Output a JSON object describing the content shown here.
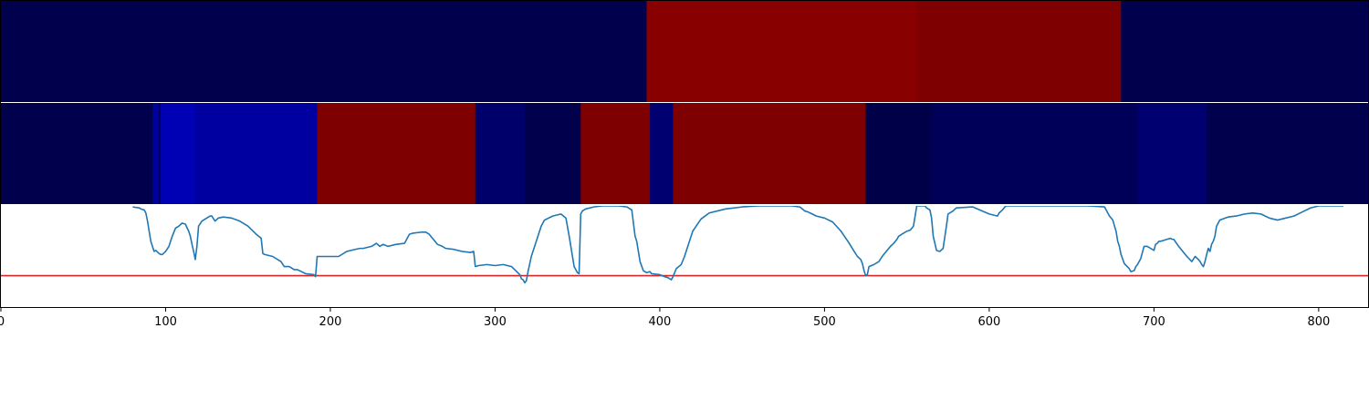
{
  "chart_data": {
    "type": "heatmap",
    "xlim": [
      0,
      830
    ],
    "x_ticks": [
      {
        "value": 0,
        "label": "0"
      },
      {
        "value": 100,
        "label": "100"
      },
      {
        "value": 200,
        "label": "200"
      },
      {
        "value": 300,
        "label": "300"
      },
      {
        "value": 400,
        "label": "400"
      },
      {
        "value": 500,
        "label": "500"
      },
      {
        "value": 600,
        "label": "600"
      },
      {
        "value": 700,
        "label": "700"
      },
      {
        "value": 800,
        "label": "800"
      }
    ],
    "segment_rows": [
      {
        "name": "",
        "segments": [
          {
            "start": 0,
            "end": 392,
            "color": "#00004c"
          },
          {
            "start": 392,
            "end": 556,
            "color": "#880000"
          },
          {
            "start": 556,
            "end": 680,
            "color": "#7f0000"
          },
          {
            "start": 680,
            "end": 830,
            "color": "#00004c"
          }
        ]
      },
      {
        "name": "",
        "segments": [
          {
            "start": 0,
            "end": 92,
            "color": "#00004c"
          },
          {
            "start": 92,
            "end": 96,
            "color": "#00009a"
          },
          {
            "start": 96,
            "end": 97,
            "color": "#00004c"
          },
          {
            "start": 97,
            "end": 118,
            "color": "#0000b4"
          },
          {
            "start": 118,
            "end": 192,
            "color": "#0000a0"
          },
          {
            "start": 192,
            "end": 288,
            "color": "#7f0000"
          },
          {
            "start": 288,
            "end": 318,
            "color": "#00006b"
          },
          {
            "start": 318,
            "end": 352,
            "color": "#00004c"
          },
          {
            "start": 352,
            "end": 394,
            "color": "#7f0000"
          },
          {
            "start": 394,
            "end": 408,
            "color": "#000070"
          },
          {
            "start": 408,
            "end": 525,
            "color": "#7f0000"
          },
          {
            "start": 525,
            "end": 565,
            "color": "#000048"
          },
          {
            "start": 565,
            "end": 690,
            "color": "#000058"
          },
          {
            "start": 690,
            "end": 732,
            "color": "#000070"
          },
          {
            "start": 732,
            "end": 830,
            "color": "#00004c"
          }
        ]
      }
    ],
    "line_panel": {
      "ylim": [
        0,
        1
      ],
      "threshold": 0.31,
      "threshold_color": "#d62728",
      "line_color": "#1f77b4",
      "x": [
        80,
        84,
        85,
        87,
        88,
        89,
        90,
        91,
        92,
        93,
        94,
        96,
        97,
        98,
        100,
        102,
        104,
        106,
        108,
        110,
        112,
        114,
        115,
        116,
        117,
        118,
        119,
        120,
        122,
        125,
        127,
        128,
        130,
        132,
        135,
        140,
        145,
        150,
        155,
        158,
        159,
        160,
        165,
        170,
        172,
        175,
        178,
        180,
        185,
        190,
        191,
        192,
        200,
        205,
        210,
        215,
        218,
        220,
        225,
        228,
        230,
        232,
        235,
        240,
        245,
        248,
        250,
        255,
        258,
        260,
        265,
        268,
        270,
        275,
        280,
        285,
        287,
        288,
        290,
        295,
        300,
        305,
        310,
        315,
        316,
        317,
        318,
        319,
        320,
        322,
        325,
        328,
        330,
        335,
        340,
        343,
        345,
        347,
        348,
        350,
        351,
        352,
        353,
        355,
        360,
        365,
        370,
        375,
        380,
        383,
        385,
        386,
        388,
        390,
        392,
        394,
        395,
        400,
        403,
        405,
        407,
        408,
        410,
        413,
        415,
        420,
        425,
        430,
        440,
        450,
        460,
        470,
        480,
        485,
        488,
        490,
        495,
        500,
        505,
        510,
        515,
        518,
        520,
        522,
        523,
        524,
        525,
        526,
        527,
        530,
        533,
        535,
        540,
        542,
        543,
        544,
        545,
        548,
        550,
        552,
        554,
        555,
        556,
        558,
        560,
        561,
        562,
        563,
        564,
        565,
        566,
        568,
        570,
        572,
        574,
        575,
        578,
        580,
        590,
        600,
        605,
        606,
        608,
        610,
        640,
        660,
        670,
        673,
        675,
        677,
        678,
        679,
        680,
        682,
        685,
        686,
        688,
        689,
        690,
        692,
        694,
        696,
        698,
        700,
        701,
        702,
        703,
        704,
        708,
        710,
        711,
        712,
        715,
        720,
        723,
        725,
        727,
        728,
        729,
        730,
        731,
        732,
        733,
        734,
        735,
        736,
        737,
        738,
        740,
        745,
        750,
        755,
        760,
        765,
        770,
        775,
        780,
        785,
        790,
        795,
        800,
        805,
        810,
        815,
        820,
        825,
        830
      ],
      "y": [
        0.99,
        0.98,
        0.97,
        0.96,
        0.93,
        0.85,
        0.75,
        0.65,
        0.6,
        0.55,
        0.56,
        0.53,
        0.52,
        0.52,
        0.55,
        0.6,
        0.7,
        0.78,
        0.8,
        0.83,
        0.82,
        0.75,
        0.7,
        0.62,
        0.55,
        0.47,
        0.6,
        0.8,
        0.85,
        0.88,
        0.9,
        0.9,
        0.85,
        0.88,
        0.89,
        0.88,
        0.85,
        0.8,
        0.72,
        0.68,
        0.53,
        0.52,
        0.5,
        0.45,
        0.4,
        0.4,
        0.37,
        0.37,
        0.33,
        0.32,
        0.3,
        0.5,
        0.5,
        0.5,
        0.55,
        0.57,
        0.58,
        0.58,
        0.6,
        0.63,
        0.6,
        0.62,
        0.6,
        0.62,
        0.63,
        0.72,
        0.73,
        0.74,
        0.74,
        0.72,
        0.62,
        0.6,
        0.58,
        0.57,
        0.55,
        0.54,
        0.55,
        0.4,
        0.41,
        0.42,
        0.41,
        0.42,
        0.4,
        0.32,
        0.28,
        0.27,
        0.24,
        0.26,
        0.35,
        0.5,
        0.65,
        0.8,
        0.86,
        0.9,
        0.92,
        0.88,
        0.7,
        0.5,
        0.4,
        0.34,
        0.33,
        0.92,
        0.95,
        0.97,
        0.99,
        1.0,
        1.0,
        1.0,
        0.99,
        0.96,
        0.7,
        0.65,
        0.45,
        0.36,
        0.34,
        0.35,
        0.33,
        0.32,
        0.3,
        0.29,
        0.27,
        0.3,
        0.38,
        0.42,
        0.5,
        0.75,
        0.87,
        0.93,
        0.97,
        0.99,
        1.0,
        1.0,
        1.0,
        0.99,
        0.95,
        0.94,
        0.9,
        0.88,
        0.84,
        0.75,
        0.63,
        0.55,
        0.5,
        0.47,
        0.43,
        0.36,
        0.31,
        0.32,
        0.4,
        0.42,
        0.45,
        0.5,
        0.6,
        0.63,
        0.65,
        0.67,
        0.7,
        0.73,
        0.75,
        0.76,
        0.8,
        0.9,
        1.0,
        1.0,
        1.0,
        1.0,
        0.98,
        0.97,
        0.96,
        0.88,
        0.7,
        0.56,
        0.55,
        0.58,
        0.8,
        0.92,
        0.95,
        0.98,
        0.99,
        0.92,
        0.9,
        0.93,
        0.96,
        1.0,
        1.0,
        1.0,
        0.99,
        0.9,
        0.86,
        0.75,
        0.65,
        0.6,
        0.52,
        0.43,
        0.38,
        0.35,
        0.36,
        0.4,
        0.42,
        0.48,
        0.6,
        0.6,
        0.58,
        0.56,
        0.62,
        0.63,
        0.65,
        0.65,
        0.67,
        0.68,
        0.67,
        0.67,
        0.6,
        0.5,
        0.45,
        0.5,
        0.47,
        0.45,
        0.42,
        0.4,
        0.45,
        0.52,
        0.58,
        0.55,
        0.62,
        0.65,
        0.7,
        0.8,
        0.86,
        0.89,
        0.9,
        0.92,
        0.93,
        0.92,
        0.88,
        0.86,
        0.88,
        0.9,
        0.94,
        0.98,
        1.0,
        1.0,
        1.0,
        1.0
      ]
    }
  }
}
